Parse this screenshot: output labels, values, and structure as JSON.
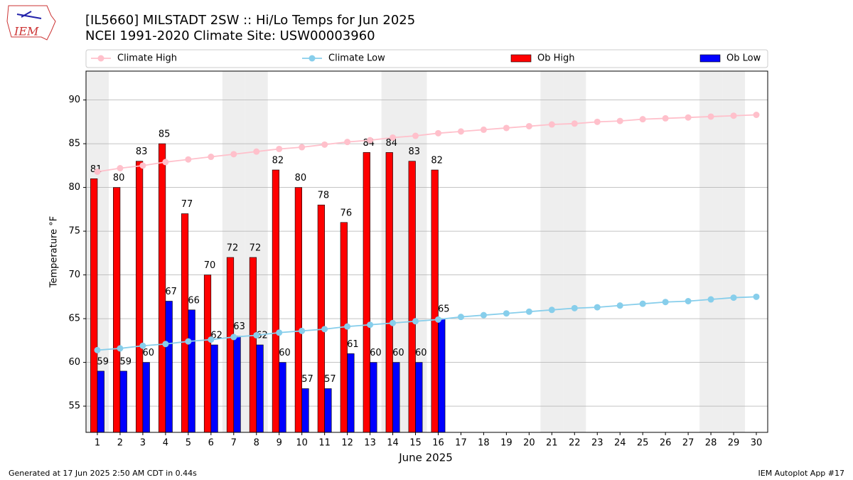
{
  "chart_data": {
    "type": "bar",
    "title": "[IL5660] MILSTADT 2SW :: Hi/Lo Temps for Jun 2025",
    "subtitle": "NCEI 1991-2020 Climate Site: USW00003960",
    "x_label": "June 2025",
    "y_label": "Temperature °F",
    "logo": "IEM",
    "footer_left": "Generated at 17 Jun 2025 2:50 AM CDT in 0.44s",
    "footer_right": "IEM Autoplot App #17",
    "x": [
      1,
      2,
      3,
      4,
      5,
      6,
      7,
      8,
      9,
      10,
      11,
      12,
      13,
      14,
      15,
      16,
      17,
      18,
      19,
      20,
      21,
      22,
      23,
      24,
      25,
      26,
      27,
      28,
      29,
      30
    ],
    "xlim": [
      0.5,
      30.5
    ],
    "xticks": [
      1,
      2,
      3,
      4,
      5,
      6,
      7,
      8,
      9,
      10,
      11,
      12,
      13,
      14,
      15,
      16,
      17,
      18,
      19,
      20,
      21,
      22,
      23,
      24,
      25,
      26,
      27,
      28,
      29,
      30
    ],
    "ylim": [
      52,
      93.3
    ],
    "yticks": [
      55,
      60,
      65,
      70,
      75,
      80,
      85,
      90
    ],
    "grid": true,
    "shaded_days": [
      1,
      7,
      8,
      14,
      15,
      21,
      22,
      28,
      29
    ],
    "series": [
      {
        "name": "Climate High",
        "type": "line",
        "color": "#ffc0cb",
        "values": [
          81.8,
          82.2,
          82.5,
          82.9,
          83.2,
          83.5,
          83.8,
          84.1,
          84.4,
          84.6,
          84.9,
          85.2,
          85.4,
          85.7,
          85.9,
          86.2,
          86.4,
          86.6,
          86.8,
          87.0,
          87.2,
          87.3,
          87.5,
          87.6,
          87.8,
          87.9,
          88.0,
          88.1,
          88.2,
          88.3
        ]
      },
      {
        "name": "Climate Low",
        "type": "line",
        "color": "#87ceeb",
        "values": [
          61.4,
          61.6,
          61.9,
          62.1,
          62.4,
          62.6,
          62.9,
          63.1,
          63.4,
          63.6,
          63.8,
          64.1,
          64.3,
          64.5,
          64.7,
          64.9,
          65.2,
          65.4,
          65.6,
          65.8,
          66.0,
          66.2,
          66.3,
          66.5,
          66.7,
          66.9,
          67.0,
          67.2,
          67.4,
          67.5
        ]
      },
      {
        "name": "Ob High",
        "type": "bar",
        "color": "#ff0000",
        "values": [
          81,
          80,
          83,
          85,
          77,
          70,
          72,
          72,
          82,
          80,
          78,
          76,
          84,
          84,
          83,
          82,
          null,
          null,
          null,
          null,
          null,
          null,
          null,
          null,
          null,
          null,
          null,
          null,
          null,
          null
        ]
      },
      {
        "name": "Ob Low",
        "type": "bar",
        "color": "#0000ff",
        "values": [
          59,
          59,
          60,
          67,
          66,
          62,
          63,
          62,
          60,
          57,
          57,
          61,
          60,
          60,
          60,
          65,
          null,
          null,
          null,
          null,
          null,
          null,
          null,
          null,
          null,
          null,
          null,
          null,
          null,
          null
        ]
      }
    ]
  }
}
